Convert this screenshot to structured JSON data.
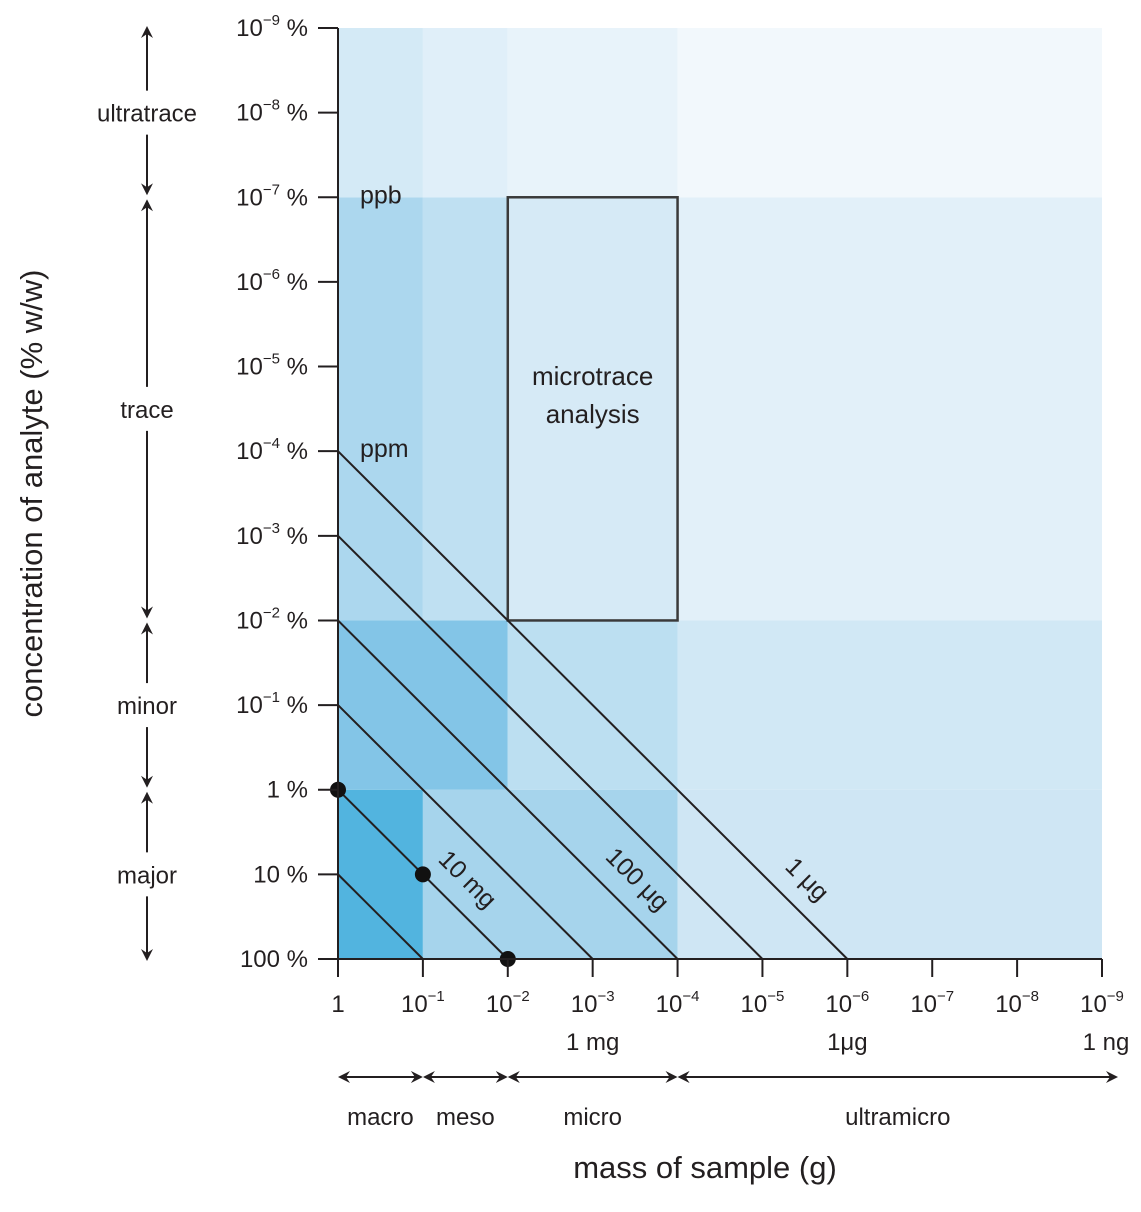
{
  "chart_data": {
    "type": "line",
    "xlabel": "mass of sample (g)",
    "ylabel": "concentration of analyte (% w/w)",
    "x_scale": "log",
    "y_scale": "log",
    "x_axis_reversed": true,
    "y_axis_reversed": true,
    "xlim_g": [
      1,
      1e-09
    ],
    "ylim_percent": [
      100,
      1e-09
    ],
    "x_ticks": [
      {
        "value": 1,
        "exp": "",
        "base": "1",
        "sub": ""
      },
      {
        "value": 0.1,
        "exp": "−1",
        "base": "10",
        "sub": ""
      },
      {
        "value": 0.01,
        "exp": "−2",
        "base": "10",
        "sub": ""
      },
      {
        "value": 0.001,
        "exp": "−3",
        "base": "10",
        "sub": "1 mg"
      },
      {
        "value": 0.0001,
        "exp": "−4",
        "base": "10",
        "sub": ""
      },
      {
        "value": 1e-05,
        "exp": "−5",
        "base": "10",
        "sub": ""
      },
      {
        "value": 1e-06,
        "exp": "−6",
        "base": "10",
        "sub": "1μg"
      },
      {
        "value": 1e-07,
        "exp": "−7",
        "base": "10",
        "sub": ""
      },
      {
        "value": 1e-08,
        "exp": "−8",
        "base": "10",
        "sub": ""
      },
      {
        "value": 1e-09,
        "exp": "−9",
        "base": "10",
        "sub": "1 ng"
      }
    ],
    "y_ticks": [
      {
        "value": 100,
        "base": "100",
        "exp": "",
        "suffix": " %"
      },
      {
        "value": 10,
        "base": "10",
        "exp": "",
        "suffix": " %"
      },
      {
        "value": 1,
        "base": "1",
        "exp": "",
        "suffix": " %"
      },
      {
        "value": 0.1,
        "base": "10",
        "exp": "−1",
        "suffix": " %"
      },
      {
        "value": 0.01,
        "base": "10",
        "exp": "−2",
        "suffix": " %"
      },
      {
        "value": 0.001,
        "base": "10",
        "exp": "−3",
        "suffix": " %"
      },
      {
        "value": 0.0001,
        "base": "10",
        "exp": "−4",
        "suffix": " %"
      },
      {
        "value": 1e-05,
        "base": "10",
        "exp": "−5",
        "suffix": " %"
      },
      {
        "value": 1e-06,
        "base": "10",
        "exp": "−6",
        "suffix": " %"
      },
      {
        "value": 1e-07,
        "base": "10",
        "exp": "−7",
        "suffix": " %"
      },
      {
        "value": 1e-08,
        "base": "10",
        "exp": "−8",
        "suffix": " %"
      },
      {
        "value": 1e-09,
        "base": "10",
        "exp": "−9",
        "suffix": " %"
      }
    ],
    "regions": [
      {
        "x_from": 1,
        "x_to": 0.1,
        "y_from": 100,
        "y_to": 1,
        "color": "#52b4df"
      },
      {
        "x_from": 0.1,
        "x_to": 0.0001,
        "y_from": 100,
        "y_to": 1,
        "color": "#a6d4ec"
      },
      {
        "x_from": 0.0001,
        "x_to": 1e-09,
        "y_from": 100,
        "y_to": 1,
        "color": "#cfe6f4"
      },
      {
        "x_from": 1,
        "x_to": 0.01,
        "y_from": 1,
        "y_to": 0.01,
        "color": "#83c5e7"
      },
      {
        "x_from": 0.01,
        "x_to": 0.0001,
        "y_from": 1,
        "y_to": 0.01,
        "color": "#bcdff1"
      },
      {
        "x_from": 0.0001,
        "x_to": 1e-09,
        "y_from": 1,
        "y_to": 0.01,
        "color": "#d1e8f5"
      },
      {
        "x_from": 1,
        "x_to": 0.1,
        "y_from": 0.01,
        "y_to": 1e-07,
        "color": "#acd7ee"
      },
      {
        "x_from": 0.1,
        "x_to": 0.01,
        "y_from": 0.01,
        "y_to": 1e-07,
        "color": "#bfe0f2"
      },
      {
        "x_from": 0.01,
        "x_to": 0.0001,
        "y_from": 0.01,
        "y_to": 1e-07,
        "color": "#cde6f5"
      },
      {
        "x_from": 0.0001,
        "x_to": 1e-09,
        "y_from": 0.01,
        "y_to": 1e-07,
        "color": "#e2f0f9"
      },
      {
        "x_from": 1,
        "x_to": 0.1,
        "y_from": 1e-07,
        "y_to": 1e-09,
        "color": "#d4eaf6"
      },
      {
        "x_from": 0.1,
        "x_to": 0.01,
        "y_from": 1e-07,
        "y_to": 1e-09,
        "color": "#e0eff9"
      },
      {
        "x_from": 0.01,
        "x_to": 0.0001,
        "y_from": 1e-07,
        "y_to": 1e-09,
        "color": "#e8f3fa"
      },
      {
        "x_from": 0.0001,
        "x_to": 1e-09,
        "y_from": 1e-07,
        "y_to": 1e-09,
        "color": "#f2f8fc"
      }
    ],
    "series": [
      {
        "x": [
          0.1,
          1
        ],
        "y": [
          100,
          10
        ],
        "label": ""
      },
      {
        "x": [
          0.01,
          1
        ],
        "y": [
          100,
          1
        ],
        "label": "10 mg"
      },
      {
        "x": [
          0.001,
          1
        ],
        "y": [
          100,
          0.1
        ],
        "label": ""
      },
      {
        "x": [
          0.0001,
          1
        ],
        "y": [
          100,
          0.01
        ],
        "label": "100 μg"
      },
      {
        "x": [
          1e-05,
          1
        ],
        "y": [
          100,
          0.001
        ],
        "label": ""
      },
      {
        "x": [
          1e-06,
          1
        ],
        "y": [
          100,
          0.0001
        ],
        "label": "1 μg"
      }
    ],
    "points": [
      {
        "x": 1,
        "y": 1
      },
      {
        "x": 0.1,
        "y": 10
      },
      {
        "x": 0.01,
        "y": 100
      }
    ],
    "microtrace_box": {
      "x_from": 0.01,
      "x_to": 0.0001,
      "y_from": 0.01,
      "y_to": 1e-07,
      "color": "#d6eaf6"
    },
    "annotations": [
      {
        "text": "ppb",
        "x": 1,
        "y": 1e-07
      },
      {
        "text": "ppm",
        "x": 1,
        "y": 0.0001
      }
    ],
    "microtrace_label": [
      "microtrace",
      "analysis"
    ],
    "concentration_categories": [
      {
        "label": "ultratrace",
        "from": 1e-09,
        "to": 1e-07
      },
      {
        "label": "trace",
        "from": 1e-07,
        "to": 0.01
      },
      {
        "label": "minor",
        "from": 0.01,
        "to": 1
      },
      {
        "label": "major",
        "from": 1,
        "to": 100
      }
    ],
    "mass_categories": [
      {
        "label": "macro",
        "from": 1,
        "to": 0.1
      },
      {
        "label": "meso",
        "from": 0.1,
        "to": 0.01
      },
      {
        "label": "micro",
        "from": 0.01,
        "to": 0.0001
      },
      {
        "label": "ultramicro",
        "from": 0.0001,
        "to": 1e-09
      }
    ],
    "grid": false,
    "legend": "none"
  }
}
